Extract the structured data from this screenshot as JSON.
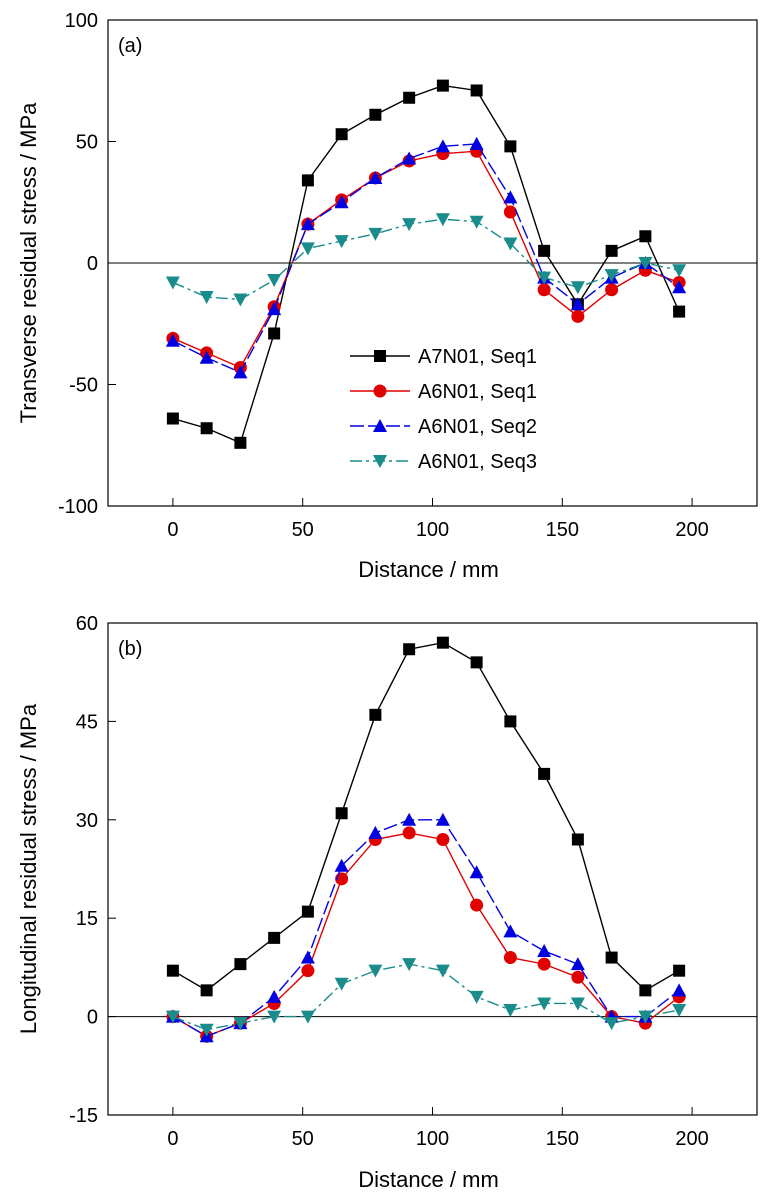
{
  "chart_data": [
    {
      "type": "line",
      "panel_label": "(a)",
      "xlabel": "Distance / mm",
      "ylabel": "Transverse residual stress / MPa",
      "xlim": [
        -25,
        225
      ],
      "ylim": [
        -100,
        100
      ],
      "xticks": [
        0,
        50,
        100,
        150,
        200
      ],
      "yticks": [
        -100,
        -50,
        0,
        50,
        100
      ],
      "zero_line": true,
      "grid": false,
      "legend_position": "center-bottom",
      "x": [
        0,
        13,
        26,
        39,
        52,
        65,
        78,
        91,
        104,
        117,
        130,
        143,
        156,
        169,
        182,
        195
      ],
      "series": [
        {
          "name": "A7N01, Seq1",
          "color": "#000000",
          "marker": "square",
          "dash": "none",
          "values": [
            -64,
            -68,
            -74,
            -29,
            34,
            53,
            61,
            68,
            73,
            71,
            48,
            5,
            -17,
            5,
            11,
            -20
          ]
        },
        {
          "name": "A6N01, Seq1",
          "color": "#e00000",
          "marker": "circle",
          "dash": "none",
          "values": [
            -31,
            -37,
            -43,
            -18,
            16,
            26,
            35,
            42,
            45,
            46,
            21,
            -11,
            -22,
            -11,
            -3,
            -8
          ]
        },
        {
          "name": "A6N01, Seq2",
          "color": "#0000e0",
          "marker": "triangle-up",
          "dash": "long",
          "values": [
            -32,
            -39,
            -45,
            -19,
            16,
            25,
            35,
            43,
            48,
            49,
            27,
            -6,
            -17,
            -6,
            0,
            -10
          ]
        },
        {
          "name": "A6N01, Seq3",
          "color": "#1a8c8c",
          "marker": "triangle-down",
          "dash": "dashdot",
          "values": [
            -8,
            -14,
            -15,
            -7,
            6,
            9,
            12,
            16,
            18,
            17,
            8,
            -6,
            -10,
            -5,
            0,
            -3
          ]
        }
      ]
    },
    {
      "type": "line",
      "panel_label": "(b)",
      "xlabel": "Distance / mm",
      "ylabel": "Longitudinal residual stress / MPa",
      "xlim": [
        -25,
        225
      ],
      "ylim": [
        -15,
        60
      ],
      "xticks": [
        0,
        50,
        100,
        150,
        200
      ],
      "yticks": [
        -15,
        0,
        15,
        30,
        45,
        60
      ],
      "zero_line": true,
      "grid": false,
      "x": [
        0,
        13,
        26,
        39,
        52,
        65,
        78,
        91,
        104,
        117,
        130,
        143,
        156,
        169,
        182,
        195
      ],
      "series": [
        {
          "color": "#000000",
          "marker": "square",
          "dash": "none",
          "values": [
            7,
            4,
            8,
            12,
            16,
            31,
            46,
            56,
            57,
            54,
            45,
            37,
            27,
            9,
            4,
            7
          ]
        },
        {
          "color": "#e00000",
          "marker": "circle",
          "dash": "none",
          "values": [
            0,
            -3,
            -1,
            2,
            7,
            21,
            27,
            28,
            27,
            17,
            9,
            8,
            6,
            0,
            -1,
            3
          ]
        },
        {
          "color": "#0000e0",
          "marker": "triangle-up",
          "dash": "long",
          "values": [
            0,
            -3,
            -1,
            3,
            9,
            23,
            28,
            30,
            30,
            22,
            13,
            10,
            8,
            0,
            0,
            4
          ]
        },
        {
          "color": "#1a8c8c",
          "marker": "triangle-down",
          "dash": "dashdot",
          "values": [
            0,
            -2,
            -1,
            0,
            0,
            5,
            7,
            8,
            7,
            3,
            1,
            2,
            2,
            -1,
            0,
            1
          ]
        }
      ]
    }
  ]
}
